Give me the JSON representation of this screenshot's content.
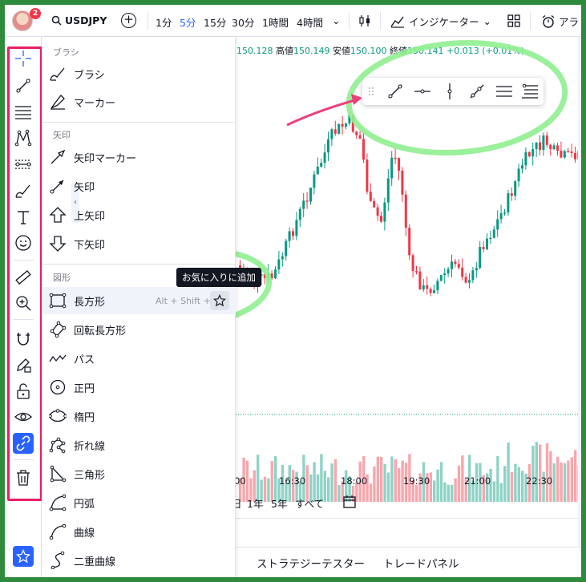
{
  "header": {
    "notification_count": "2",
    "symbol": "USDJPY",
    "timeframes": [
      "1分",
      "5分",
      "15分",
      "30分",
      "1時間",
      "4時間"
    ],
    "active_timeframe_index": 1,
    "indicators_label": "インジケーター",
    "alert_label": "アラ"
  },
  "ohlc": {
    "open_value": "150.128",
    "high_label": "高値",
    "high_value": "150.149",
    "low_label": "安値",
    "low_value": "150.100",
    "close_label": "終値",
    "close_value": "150.141",
    "change": "+0.013 (+0.01%)"
  },
  "menu": {
    "sections": {
      "brush": "ブラシ",
      "arrows": "矢印",
      "shapes": "図形"
    },
    "brush_items": [
      "ブラシ",
      "マーカー"
    ],
    "arrow_items": [
      "矢印マーカー",
      "矢印",
      "上矢印",
      "下矢印"
    ],
    "shape_items": [
      "長方形",
      "回転長方形",
      "パス",
      "正円",
      "楕円",
      "折れ線",
      "三角形",
      "円弧",
      "曲線",
      "二重曲線"
    ],
    "rectangle_shortcut": "Alt + Shift + R",
    "tooltip": "お気に入りに追加"
  },
  "chart": {
    "x_labels": [
      "00",
      "16:30",
      "18:00",
      "19:30",
      "21:00",
      "22:30"
    ],
    "ranges": [
      "日",
      "1年",
      "5年",
      "すべて"
    ]
  },
  "bottom_tabs": [
    "ストラテジーテスター",
    "トレードパネル"
  ],
  "colors": {
    "accent": "#2962ff",
    "up": "#089981",
    "down": "#f23645",
    "highlight_pink": "#e91e63",
    "highlight_green": "#90ee90"
  }
}
